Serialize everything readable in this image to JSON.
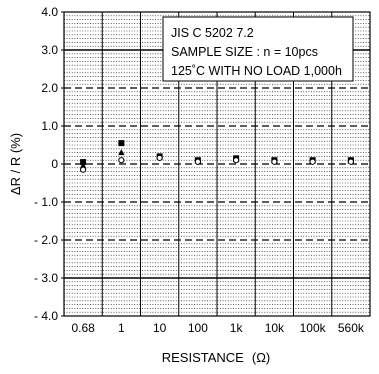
{
  "chart_data": {
    "type": "scatter",
    "categories": [
      "0.68",
      "1",
      "10",
      "100",
      "1k",
      "10k",
      "100k",
      "560k"
    ],
    "xlabel": "RESISTANCE",
    "xlabel_unit": "(Ω)",
    "ylabel": "ΔR / R (%)",
    "ylim": [
      -4.0,
      4.0
    ],
    "y_ticks": [
      "4.0",
      "3.0",
      "2.0",
      "1.0",
      "0",
      "- 1.0",
      "- 2.0",
      "- 3.0",
      "- 4.0"
    ],
    "y_tick_values": [
      4,
      3,
      2,
      1,
      0,
      -1,
      -2,
      -3,
      -4
    ],
    "grid": "dotted minor every 0.1 %, dashed major every 1 %",
    "limit_lines": [
      3.0,
      -3.0
    ],
    "annotation": [
      "JIS C 5202 7.2",
      "SAMPLE SIZE : n = 10pcs",
      "125˚C WITH NO LOAD 1,000h"
    ],
    "series": [
      {
        "marker": "square-max",
        "values": [
          0.05,
          0.55,
          0.2,
          0.1,
          0.15,
          0.1,
          0.1,
          0.1
        ]
      },
      {
        "marker": "triangle-avg",
        "values": [
          -0.05,
          0.3,
          0.18,
          0.08,
          0.12,
          0.08,
          0.08,
          0.08
        ]
      },
      {
        "marker": "circle-min",
        "values": [
          -0.15,
          0.1,
          0.16,
          0.06,
          0.1,
          0.06,
          0.06,
          0.06
        ]
      }
    ]
  }
}
